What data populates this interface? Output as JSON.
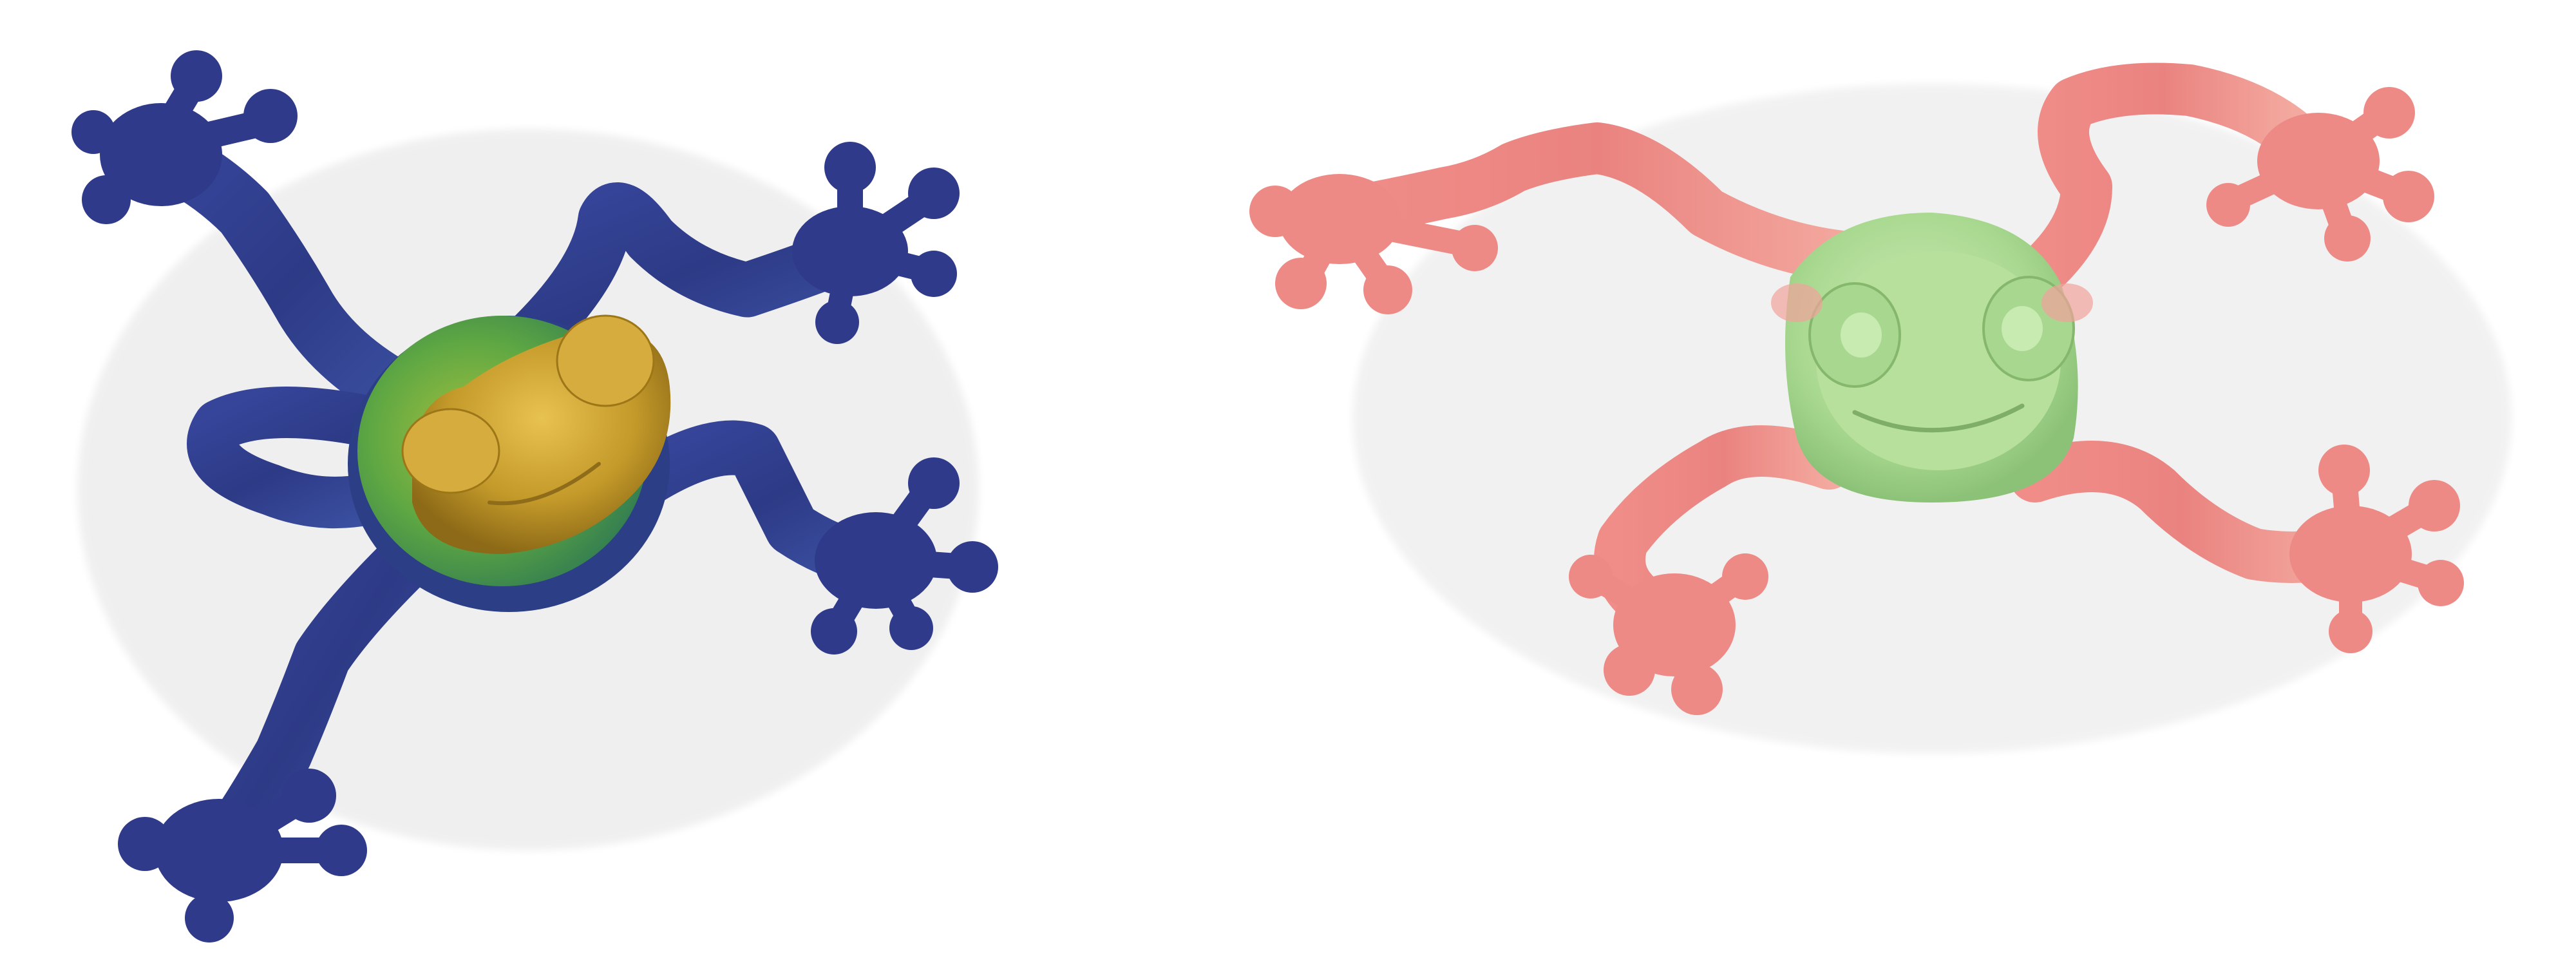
{
  "scene": {
    "background": "#ffffff",
    "subjects": [
      {
        "name": "blue-frog",
        "body_color": "#2f3a8a",
        "sheen_color": "#3d6fa8",
        "back_color": "#4f9b3d",
        "head_color": "#c49a2a"
      },
      {
        "name": "pink-frog",
        "limb_color": "#ee8a86",
        "limb_light": "#f4b3aa",
        "body_color": "#a8d88f",
        "body_light": "#c3e6a9"
      }
    ]
  }
}
